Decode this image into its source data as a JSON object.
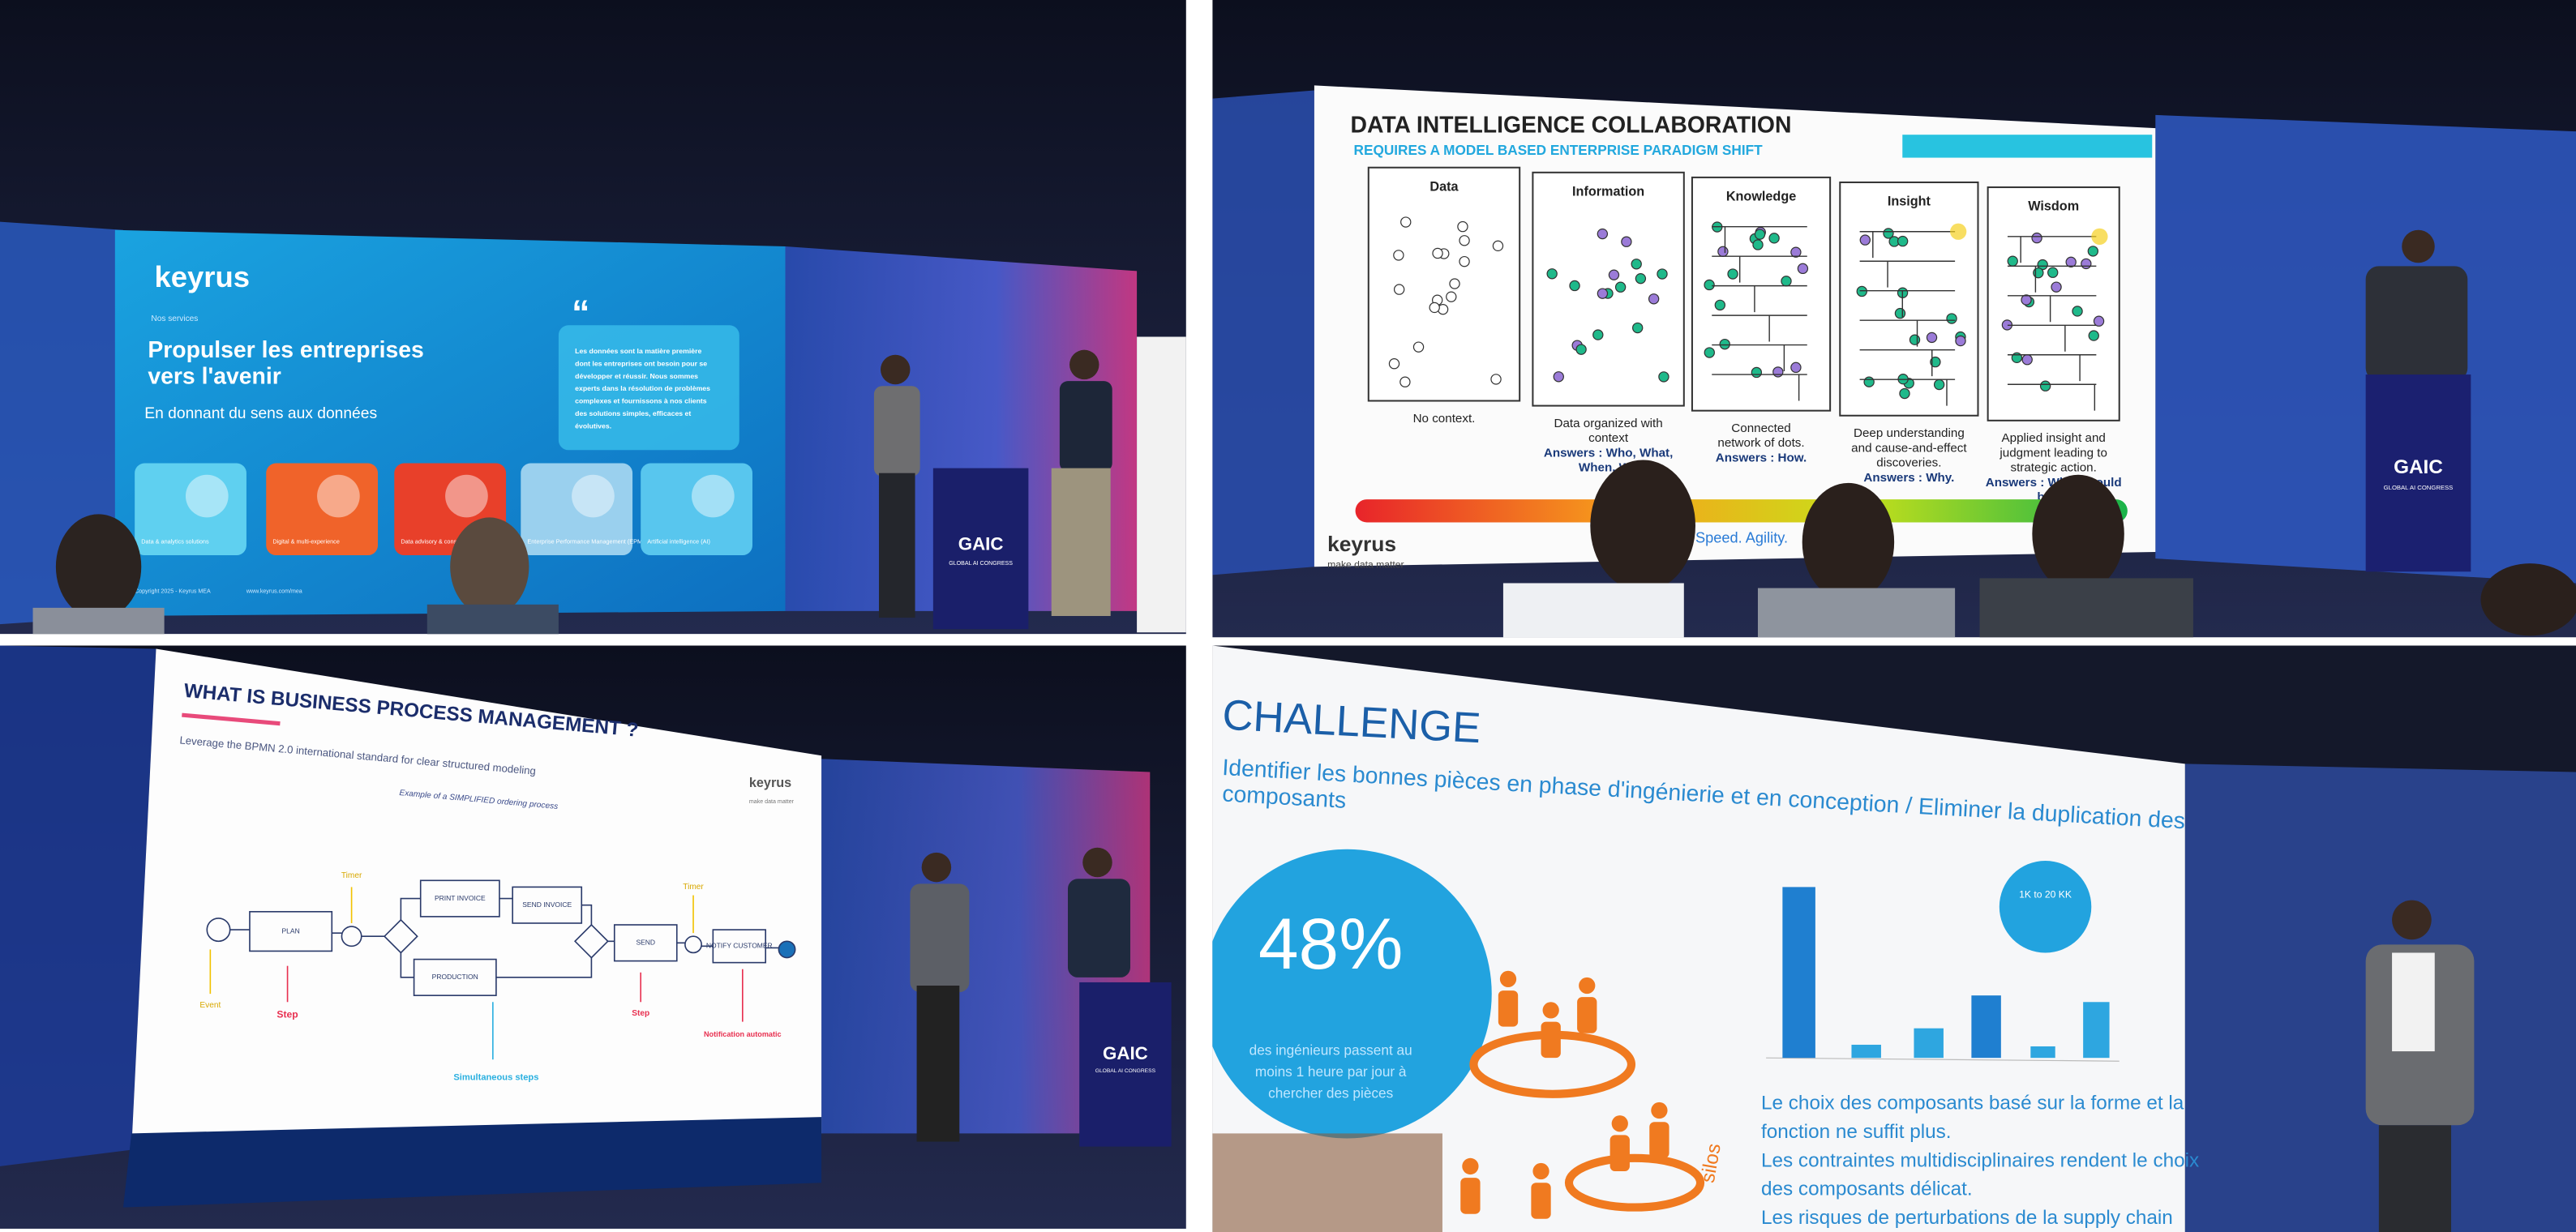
{
  "panels": [
    {
      "brand": "keyrus",
      "kicker": "Nos services",
      "title": [
        "Propulser les entreprises",
        "vers l'avenir"
      ],
      "subtitle": "En donnant du sens aux données",
      "sidebar": [
        "Les données sont la matière première",
        "dont les entreprises ont besoin pour se",
        "développer et réussir. Nous sommes",
        "experts dans la résolution de problèmes",
        "complexes et fournissons à nos clients",
        "des solutions simples, efficaces et",
        "évolutives."
      ],
      "services": [
        "Data & analytics solutions",
        "Digital & multi-experience",
        "Data advisory & consulting",
        "Enterprise Performance Management (EPM)",
        "Artificial intelligence (AI)"
      ],
      "footer": "Copyright 2025 - Keyrus MEA",
      "url": "www.keyrus.com/mea",
      "podium": {
        "logo": "GAIC",
        "name": "GLOBAL AI CONGRESS"
      }
    },
    {
      "title": "DATA INTELLIGENCE COLLABORATION",
      "subtitle": "REQUIRES A MODEL BASED ENTERPRISE PARADIGM SHIFT",
      "stages": [
        {
          "label": "Data",
          "caption": [
            "No context."
          ],
          "answer": []
        },
        {
          "label": "Information",
          "caption": [
            "Data organized with",
            "context"
          ],
          "answer": [
            "Answers : Who, What,",
            "When, Wh"
          ]
        },
        {
          "label": "Knowledge",
          "caption": [
            "Connected",
            "network of dots."
          ],
          "answer": [
            "Answers : How."
          ]
        },
        {
          "label": "Insight",
          "caption": [
            "Deep understanding",
            "and cause-and-effect",
            "discoveries."
          ],
          "answer": [
            "Answers : Why."
          ]
        },
        {
          "label": "Wisdom",
          "caption": [
            "Applied insight and",
            "judgment leading to",
            "strategic action."
          ],
          "answer": [
            "Answers : What should",
            "be do"
          ]
        }
      ],
      "brand": "keyrus",
      "tagline": "make data matter",
      "footer": "Speed. Agility.",
      "podium": {
        "logo": "GAIC",
        "name": "GLOBAL AI CONGRESS"
      }
    },
    {
      "title": "WHAT IS BUSINESS PROCESS MANAGEMENT ?",
      "subtitle": "Leverage the BPMN 2.0 international standard for clear structured modeling",
      "example": "Example of a SIMPLIFIED ordering process",
      "brand": "keyrus",
      "tagline": "make data matter",
      "steps": [
        "PLAN",
        "PRINT INVOICE",
        "SEND INVOICE",
        "PRODUCTION",
        "SEND",
        "NOTIFY CUSTOMER"
      ],
      "notes": {
        "event": "Event",
        "step_1": "Step",
        "timer_1": "Timer",
        "parallel": "Simultaneous steps",
        "step_2": "Step",
        "timer_2": "Timer",
        "notify": "Notification automatic"
      },
      "podium": {
        "logo": "GAIC",
        "name": "GLOBAL AI CONGRESS"
      }
    },
    {
      "title": "CHALLENGE",
      "subtitle": [
        "Identifier les bonnes pièces en phase d'ingénierie et en conception  / Eliminer la duplication des",
        "composants"
      ],
      "stat": "48%",
      "stat_caption": [
        "des ingénieurs passent au",
        "moins 1 heure par jour à",
        "chercher des pièces"
      ],
      "badge": "1K to 20 KK",
      "side_label": "silos",
      "bullets": [
        "Le choix des composants basé sur la forme et la",
        "fonction ne suffit plus.",
        "Les contraintes multidisciplinaires rendent le choix",
        "des composants délicat.",
        "Les risques de perturbations de la supply chain"
      ]
    }
  ]
}
